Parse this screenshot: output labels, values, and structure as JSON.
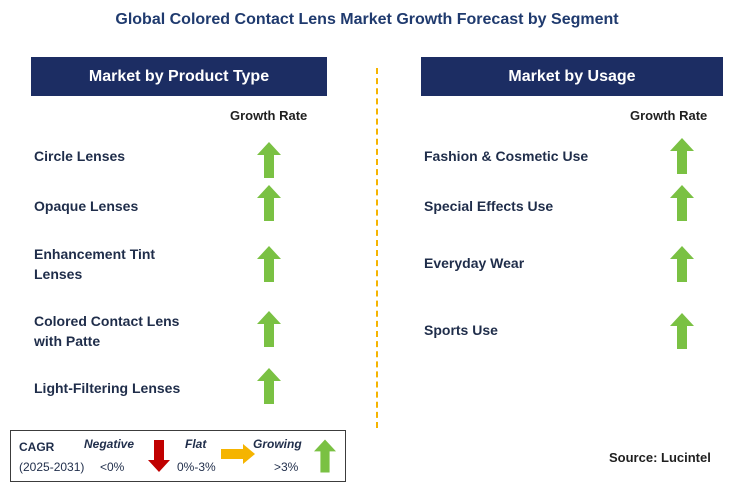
{
  "title": "Global Colored Contact Lens Market Growth Forecast by Segment",
  "left_panel": {
    "header": "Market by Product Type",
    "growth_label": "Growth Rate",
    "items": [
      {
        "line1": "Circle Lenses",
        "line2": "",
        "trend": "growing"
      },
      {
        "line1": "Opaque Lenses",
        "line2": "",
        "trend": "growing"
      },
      {
        "line1": "Enhancement Tint",
        "line2": "Lenses",
        "trend": "growing"
      },
      {
        "line1": "Colored Contact Lens",
        "line2": "with Patte",
        "trend": "growing"
      },
      {
        "line1": "Light-Filtering Lenses",
        "line2": "",
        "trend": "growing"
      }
    ]
  },
  "right_panel": {
    "header": "Market by Usage",
    "growth_label": "Growth Rate",
    "items": [
      {
        "line1": "Fashion & Cosmetic Use",
        "trend": "growing"
      },
      {
        "line1": "Special Effects Use",
        "trend": "growing"
      },
      {
        "line1": "Everyday Wear",
        "trend": "growing"
      },
      {
        "line1": "Sports Use",
        "trend": "growing"
      }
    ]
  },
  "legend": {
    "cagr_label": "CAGR",
    "period": "(2025-2031)",
    "negative_label": "Negative",
    "negative_range": "<0%",
    "flat_label": "Flat",
    "flat_range": "0%-3%",
    "growing_label": "Growing",
    "growing_range": ">3%"
  },
  "source": "Source: Lucintel",
  "colors": {
    "header_bg": "#1c2d63",
    "growing_arrow": "#7ac143",
    "negative_arrow": "#c00000",
    "flat_arrow": "#f5b400",
    "divider": "#f5b400"
  }
}
